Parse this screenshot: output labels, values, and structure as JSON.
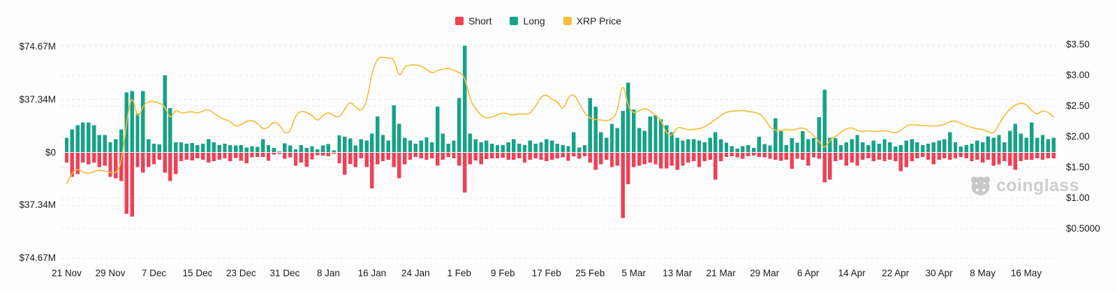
{
  "colors": {
    "short": "#EF4156",
    "long": "#17A287",
    "price": "#F5BE3E",
    "grid": "#e9e9e9",
    "text": "#1b1b1b",
    "watermark": "#c8c8c8",
    "background": "#fdfdfd"
  },
  "legend": {
    "items": [
      {
        "label": "Short",
        "color": "#EF4156"
      },
      {
        "label": "Long",
        "color": "#17A287"
      },
      {
        "label": "XRP Price",
        "color": "#F5BE3E"
      }
    ]
  },
  "watermark": {
    "text": "coinglass",
    "icon": "coinglass-bull-icon"
  },
  "chart_data": {
    "type": "bar",
    "subtype": "long-short-liquidation bars with price line overlay",
    "unit_left": "USD millions",
    "unit_right": "USD",
    "y_axis_left": {
      "labels": [
        "$74.67M",
        "$37.34M",
        "$0",
        "$37.34M",
        "$74.67M"
      ],
      "values": [
        74.67,
        37.34,
        0,
        -37.34,
        -74.67
      ],
      "range": [
        -74.67,
        74.67
      ]
    },
    "y_axis_right": {
      "labels": [
        "$3.50",
        "$3.00",
        "$2.50",
        "$2.00",
        "$1.50",
        "$1.00",
        "$0.5000"
      ],
      "values": [
        3.5,
        3.0,
        2.5,
        2.0,
        1.5,
        1.0,
        0.5
      ],
      "range": [
        0.2,
        3.5
      ]
    },
    "x_ticks": {
      "labels": [
        "21 Nov",
        "29 Nov",
        "7 Dec",
        "15 Dec",
        "23 Dec",
        "31 Dec",
        "8 Jan",
        "16 Jan",
        "24 Jan",
        "1 Feb",
        "9 Feb",
        "17 Feb",
        "25 Feb",
        "5 Mar",
        "13 Mar",
        "21 Mar",
        "29 Mar",
        "6 Apr",
        "14 Apr",
        "22 Apr",
        "30 Apr",
        "8 May",
        "16 May"
      ],
      "day_index": [
        0,
        8,
        16,
        24,
        32,
        40,
        48,
        56,
        64,
        72,
        80,
        88,
        96,
        104,
        112,
        120,
        128,
        136,
        144,
        152,
        160,
        168,
        176
      ]
    },
    "grid": "dashed horizontal",
    "legend_position": "top center",
    "series": [
      {
        "name": "Long",
        "type": "bar",
        "axis": "left",
        "direction": "up",
        "color": "#17A287",
        "values": [
          10,
          16,
          19,
          21,
          21,
          19,
          12,
          12,
          7,
          9,
          16,
          42,
          43,
          27,
          43,
          9,
          6,
          5.5,
          54,
          31,
          7,
          7,
          6,
          6.5,
          5,
          6,
          9,
          7,
          5,
          6,
          5,
          4.6,
          4.9,
          3.3,
          4.1,
          3.6,
          9,
          4.9,
          3,
          0.5,
          6.2,
          4.6,
          2,
          4.9,
          3,
          4.1,
          2,
          4.6,
          5.7,
          1.3,
          11.8,
          10.7,
          9.5,
          4.6,
          9,
          8,
          13,
          25,
          12,
          8,
          33,
          20,
          10,
          8,
          6,
          8,
          10.3,
          7,
          32,
          13,
          6,
          8,
          38,
          75,
          13,
          9,
          7,
          8,
          6,
          5,
          5,
          7,
          9,
          6,
          5,
          8,
          6,
          7,
          9,
          8,
          6,
          5,
          4.1,
          14,
          3.3,
          4.9,
          38,
          32,
          14,
          10,
          20,
          17,
          29,
          49,
          30,
          17,
          15,
          25,
          26,
          23,
          19,
          14,
          10,
          8,
          9,
          9,
          8,
          7,
          10,
          14,
          9,
          6.6,
          4.1,
          2.5,
          4.1,
          4.9,
          3,
          10.7,
          5.7,
          4.6,
          23.8,
          14.8,
          4.9,
          9.8,
          6.6,
          14.8,
          9,
          9.8,
          24.6,
          44,
          10,
          9.8,
          5,
          7,
          9,
          12,
          7,
          5,
          8,
          6,
          9,
          7,
          4,
          5,
          8,
          9,
          7,
          5,
          6,
          7,
          8,
          9,
          14,
          7,
          4,
          5,
          6,
          8,
          7,
          11,
          10,
          12,
          7,
          15,
          20,
          13,
          10,
          21,
          10,
          12,
          9,
          10
        ]
      },
      {
        "name": "Short",
        "type": "bar",
        "axis": "left",
        "direction": "down",
        "color": "#EF4156",
        "values": [
          7,
          17,
          15,
          7,
          8,
          7,
          10,
          9,
          17,
          18,
          20,
          43,
          45,
          10,
          14,
          10,
          8,
          5,
          14,
          20,
          15,
          6,
          5,
          5.5,
          4,
          5,
          7,
          6,
          5,
          4,
          6,
          3.6,
          5.7,
          7.4,
          3.3,
          3,
          3,
          5.7,
          1.3,
          0.8,
          4.1,
          3.3,
          9,
          7,
          9.8,
          4.6,
          1.6,
          2,
          2.5,
          0.8,
          7.4,
          15.6,
          7.9,
          10,
          4,
          10,
          25,
          8,
          6,
          5,
          10,
          18,
          8,
          5,
          3,
          4,
          5,
          4,
          9,
          5,
          3,
          4,
          9,
          28,
          8,
          5.5,
          8,
          4.5,
          4,
          4,
          3.5,
          4.9,
          5,
          4,
          7,
          5,
          4,
          5,
          6,
          5,
          4,
          3.3,
          5.7,
          2.5,
          4.1,
          2.5,
          7,
          12,
          8,
          5,
          10,
          9,
          46,
          22,
          10,
          9,
          8,
          7,
          8,
          11,
          11,
          9,
          12,
          9,
          7,
          6,
          10,
          6,
          5,
          19,
          6,
          3,
          2.5,
          3.3,
          4.1,
          2.5,
          2,
          3,
          3.3,
          4.1,
          4.9,
          5.7,
          4.9,
          11.3,
          4.1,
          4.9,
          9,
          3.3,
          4.1,
          21,
          19,
          6,
          5,
          9,
          7,
          9,
          5,
          4,
          6,
          5,
          6,
          5,
          6,
          13,
          10,
          6,
          4,
          3,
          5,
          8,
          5,
          4,
          5,
          4,
          3,
          4,
          6,
          5,
          7,
          5,
          9,
          8,
          6,
          9,
          12,
          6,
          5,
          5,
          4,
          5,
          4,
          4
        ]
      },
      {
        "name": "XRP Price",
        "type": "line",
        "axis": "right",
        "color": "#F5BE3E",
        "values": [
          1.24,
          1.42,
          1.48,
          1.42,
          1.4,
          1.43,
          1.46,
          1.44,
          1.42,
          1.4,
          1.55,
          2.25,
          2.72,
          2.27,
          2.5,
          2.58,
          2.57,
          2.55,
          2.5,
          2.28,
          2.45,
          2.38,
          2.4,
          2.41,
          2.38,
          2.42,
          2.45,
          2.38,
          2.32,
          2.28,
          2.25,
          2.16,
          2.2,
          2.25,
          2.27,
          2.22,
          2.12,
          2.15,
          2.25,
          2.2,
          2.05,
          2.08,
          2.35,
          2.42,
          2.4,
          2.35,
          2.25,
          2.35,
          2.4,
          2.34,
          2.31,
          2.45,
          2.58,
          2.48,
          2.41,
          2.55,
          3.05,
          3.28,
          3.3,
          3.28,
          3.28,
          2.95,
          3.15,
          3.17,
          3.17,
          3.15,
          3.1,
          3.03,
          3.08,
          3.1,
          3.12,
          3.08,
          3.05,
          2.98,
          2.6,
          2.45,
          2.35,
          2.3,
          2.32,
          2.36,
          2.39,
          2.37,
          2.35,
          2.38,
          2.36,
          2.38,
          2.5,
          2.65,
          2.69,
          2.6,
          2.58,
          2.42,
          2.65,
          2.7,
          2.55,
          2.38,
          2.3,
          2.28,
          2.27,
          2.26,
          2.28,
          2.4,
          2.92,
          2.48,
          2.38,
          2.42,
          2.47,
          2.42,
          2.35,
          2.28,
          2.05,
          2.01,
          2.16,
          2.14,
          2.11,
          2.12,
          2.13,
          2.16,
          2.22,
          2.28,
          2.35,
          2.4,
          2.42,
          2.42,
          2.43,
          2.41,
          2.4,
          2.38,
          2.3,
          2.15,
          2.1,
          2.1,
          2.12,
          2.1,
          2.13,
          2.15,
          2.1,
          2.02,
          1.92,
          1.8,
          1.95,
          2.0,
          2.08,
          2.13,
          2.15,
          2.1,
          2.08,
          2.1,
          2.08,
          2.09,
          2.1,
          2.08,
          2.06,
          2.1,
          2.18,
          2.2,
          2.19,
          2.18,
          2.18,
          2.17,
          2.18,
          2.2,
          2.25,
          2.26,
          2.22,
          2.18,
          2.15,
          2.13,
          2.12,
          2.08,
          2.05,
          2.2,
          2.35,
          2.45,
          2.52,
          2.55,
          2.53,
          2.42,
          2.36,
          2.43,
          2.4,
          2.32
        ]
      }
    ]
  }
}
